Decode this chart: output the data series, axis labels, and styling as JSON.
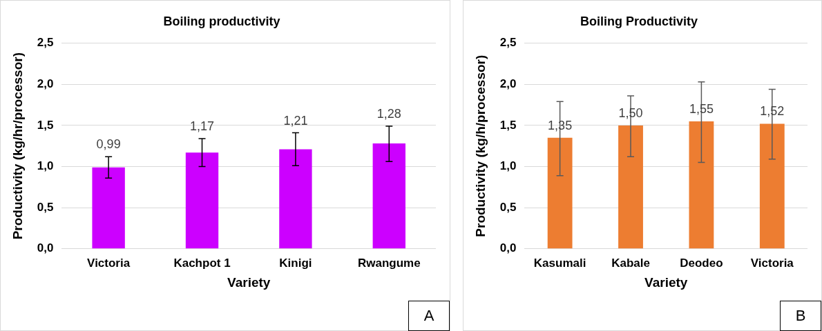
{
  "chart_data": [
    {
      "type": "bar",
      "title": "Boiling productivity",
      "xlabel": "Variety",
      "ylabel": "Productivity (kg/hr/processor)",
      "categories": [
        "Victoria",
        "Kachpot 1",
        "Kinigi",
        "Rwangume"
      ],
      "values": [
        0.99,
        1.17,
        1.21,
        1.28
      ],
      "value_labels": [
        "0,99",
        "1,17",
        "1,21",
        "1,28"
      ],
      "errors": [
        [
          0.86,
          1.12
        ],
        [
          1.0,
          1.34
        ],
        [
          1.01,
          1.41
        ],
        [
          1.06,
          1.49
        ]
      ],
      "color": "#cc00ff",
      "ylim": [
        0,
        2.5
      ],
      "yticks": [
        {
          "value": 0,
          "label": "0,0"
        },
        {
          "value": 0.5,
          "label": "0,5"
        },
        {
          "value": 1,
          "label": "1,0"
        },
        {
          "value": 1.5,
          "label": "1,5"
        },
        {
          "value": 2,
          "label": "2,0"
        },
        {
          "value": 2.5,
          "label": "2,5"
        }
      ],
      "grid": "y",
      "annotations": [
        "A"
      ]
    },
    {
      "type": "bar",
      "title": "Boiling Productivity",
      "xlabel": "Variety",
      "ylabel": "Productivity (kg/h/processor)",
      "categories": [
        "Kasumali",
        "Kabale",
        "Deodeo",
        "Victoria"
      ],
      "values": [
        1.35,
        1.5,
        1.55,
        1.52
      ],
      "value_labels": [
        "1,35",
        "1,50",
        "1,55",
        "1,52"
      ],
      "errors": [
        [
          0.89,
          1.79
        ],
        [
          1.12,
          1.86
        ],
        [
          1.05,
          2.03
        ],
        [
          1.09,
          1.94
        ]
      ],
      "color": "#ed7d31",
      "ylim": [
        0,
        2.5
      ],
      "yticks": [
        {
          "value": 0,
          "label": "0,0"
        },
        {
          "value": 0.5,
          "label": "0,5"
        },
        {
          "value": 1,
          "label": "1,0"
        },
        {
          "value": 1.5,
          "label": "1,5"
        },
        {
          "value": 2,
          "label": "2,0"
        },
        {
          "value": 2.5,
          "label": "2,5"
        }
      ],
      "grid": "y",
      "annotations": [
        "B"
      ]
    }
  ]
}
